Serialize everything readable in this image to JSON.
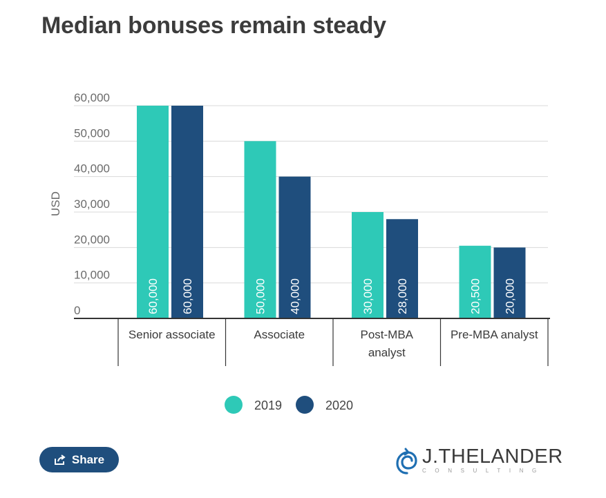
{
  "title": "Median bonuses remain steady",
  "share_label": "Share",
  "logo": {
    "name": "J.THELANDER",
    "sub": "CONSULTING",
    "color": "#1f6fb2"
  },
  "colors": {
    "s2019": "#2ec9b7",
    "s2020": "#1f4e7d",
    "grid": "#d9d9d9",
    "axis": "#333333"
  },
  "chart_data": {
    "type": "bar",
    "title": "Median bonuses remain steady",
    "ylabel": "USD",
    "xlabel": "",
    "categories": [
      "Senior associate",
      "Associate",
      "Post-MBA analyst",
      "Pre-MBA analyst"
    ],
    "category_lines": [
      [
        "Senior associate"
      ],
      [
        "Associate"
      ],
      [
        "Post-MBA",
        "analyst"
      ],
      [
        "Pre-MBA analyst"
      ]
    ],
    "series": [
      {
        "name": "2019",
        "values": [
          60000,
          50000,
          30000,
          20500
        ],
        "labels": [
          "60,000",
          "50,000",
          "30,000",
          "20,500"
        ]
      },
      {
        "name": "2020",
        "values": [
          60000,
          40000,
          28000,
          20000
        ],
        "labels": [
          "60,000",
          "40,000",
          "28,000",
          "20,000"
        ]
      }
    ],
    "ylim": [
      0,
      60000
    ],
    "yticks": [
      0,
      10000,
      20000,
      30000,
      40000,
      50000,
      60000
    ],
    "ytick_labels": [
      "0",
      "10,000",
      "20,000",
      "30,000",
      "40,000",
      "50,000",
      "60,000"
    ],
    "grid": true,
    "legend": "bottom-center"
  }
}
